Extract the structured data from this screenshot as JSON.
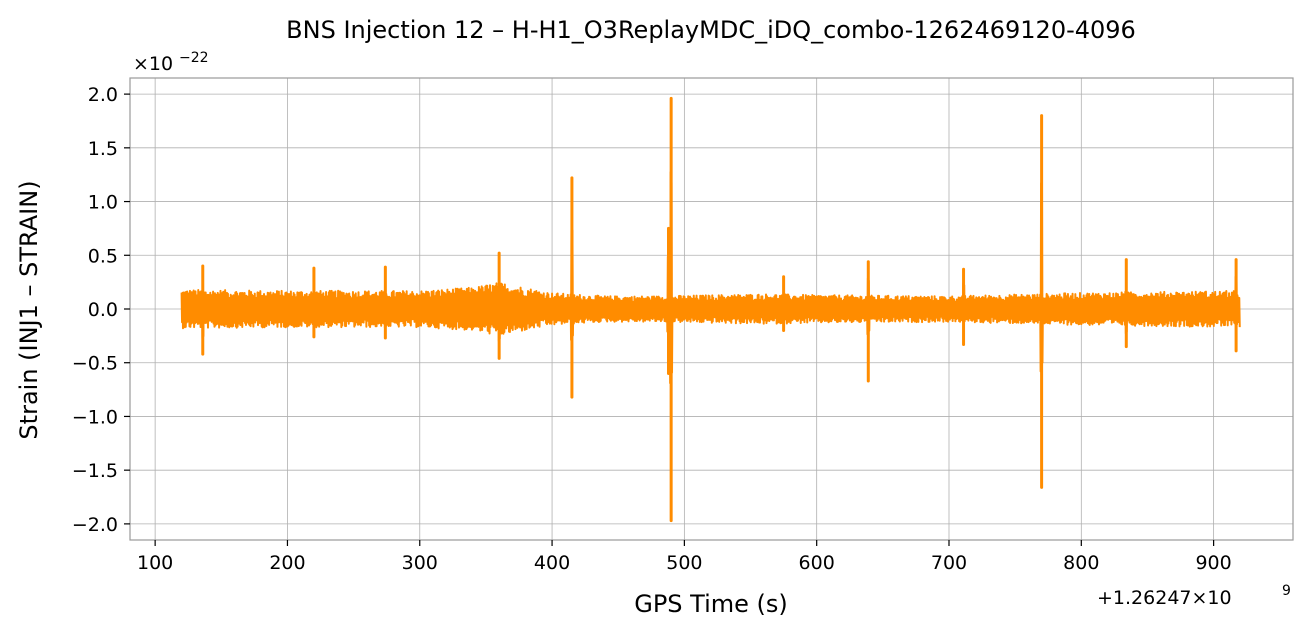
{
  "chart_data": {
    "type": "line",
    "title": "BNS Injection 12 – H-H1_O3ReplayMDC_iDQ_combo-1262469120-4096",
    "xlabel": "GPS Time (s)",
    "ylabel": "Strain (INJ1 – STRAIN)",
    "y_scale_text": "×10",
    "y_scale_exp": "−22",
    "x_offset_text": "+1.26247×10",
    "x_offset_exp": "9",
    "xlim": [
      81,
      960
    ],
    "ylim": [
      -2.15,
      2.15
    ],
    "xticks": [
      100,
      200,
      300,
      400,
      500,
      600,
      700,
      800,
      900
    ],
    "xtick_labels": [
      "100",
      "200",
      "300",
      "400",
      "500",
      "600",
      "700",
      "800",
      "900"
    ],
    "yticks": [
      2.0,
      1.5,
      1.0,
      0.5,
      0.0,
      -0.5,
      -1.0,
      -1.5,
      -2.0
    ],
    "ytick_labels": [
      "2.0",
      "1.5",
      "1.0",
      "0.5",
      "0.0",
      "−0.5",
      "−1.0",
      "−1.5",
      "−2.0"
    ],
    "grid": true,
    "line_color": "#ff8c00",
    "data_range_x": [
      120,
      920
    ],
    "noise_envelope": [
      [
        120,
        0.18
      ],
      [
        200,
        0.17
      ],
      [
        300,
        0.17
      ],
      [
        340,
        0.2
      ],
      [
        360,
        0.25
      ],
      [
        400,
        0.15
      ],
      [
        440,
        0.12
      ],
      [
        480,
        0.12
      ],
      [
        560,
        0.14
      ],
      [
        600,
        0.13
      ],
      [
        700,
        0.12
      ],
      [
        800,
        0.15
      ],
      [
        920,
        0.17
      ]
    ],
    "glitches": [
      {
        "x": 136,
        "max": 0.4,
        "min": -0.42
      },
      {
        "x": 220,
        "max": 0.38,
        "min": -0.26
      },
      {
        "x": 274,
        "max": 0.39,
        "min": -0.27
      },
      {
        "x": 360,
        "max": 0.52,
        "min": -0.46
      },
      {
        "x": 415,
        "max": 1.22,
        "min": -0.82
      },
      {
        "x": 488,
        "max": 0.75,
        "min": -0.6
      },
      {
        "x": 490,
        "max": 1.96,
        "min": -1.97
      },
      {
        "x": 575,
        "max": 0.3,
        "min": -0.2
      },
      {
        "x": 639,
        "max": 0.44,
        "min": -0.67
      },
      {
        "x": 711,
        "max": 0.37,
        "min": -0.33
      },
      {
        "x": 770,
        "max": 1.8,
        "min": -1.66
      },
      {
        "x": 834,
        "max": 0.46,
        "min": -0.35
      },
      {
        "x": 917,
        "max": 0.46,
        "min": -0.39
      }
    ]
  }
}
